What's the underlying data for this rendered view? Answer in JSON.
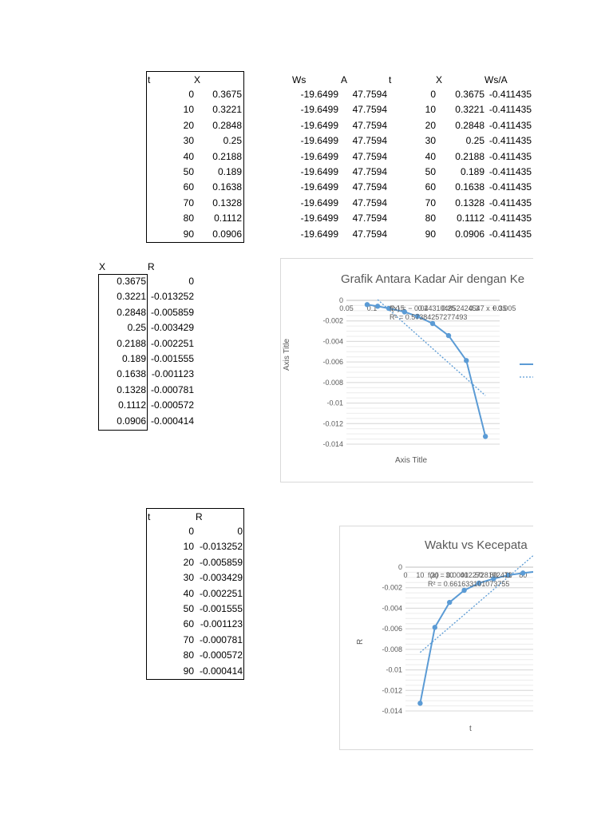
{
  "table1": {
    "headers": [
      "t",
      "X"
    ],
    "rows": [
      [
        "0",
        "0.3675"
      ],
      [
        "10",
        "0.3221"
      ],
      [
        "20",
        "0.2848"
      ],
      [
        "30",
        "0.25"
      ],
      [
        "40",
        "0.2188"
      ],
      [
        "50",
        "0.189"
      ],
      [
        "60",
        "0.1638"
      ],
      [
        "70",
        "0.1328"
      ],
      [
        "80",
        "0.1112"
      ],
      [
        "90",
        "0.0906"
      ]
    ]
  },
  "table2": {
    "headers": [
      "Ws",
      "A",
      "t",
      "X",
      "Ws/A"
    ],
    "rows": [
      [
        "-19.6499",
        "47.7594",
        "0",
        "0.3675",
        "-0.411435"
      ],
      [
        "-19.6499",
        "47.7594",
        "10",
        "0.3221",
        "-0.411435"
      ],
      [
        "-19.6499",
        "47.7594",
        "20",
        "0.2848",
        "-0.411435"
      ],
      [
        "-19.6499",
        "47.7594",
        "30",
        "0.25",
        "-0.411435"
      ],
      [
        "-19.6499",
        "47.7594",
        "40",
        "0.2188",
        "-0.411435"
      ],
      [
        "-19.6499",
        "47.7594",
        "50",
        "0.189",
        "-0.411435"
      ],
      [
        "-19.6499",
        "47.7594",
        "60",
        "0.1638",
        "-0.411435"
      ],
      [
        "-19.6499",
        "47.7594",
        "70",
        "0.1328",
        "-0.411435"
      ],
      [
        "-19.6499",
        "47.7594",
        "80",
        "0.1112",
        "-0.411435"
      ],
      [
        "-19.6499",
        "47.7594",
        "90",
        "0.0906",
        "-0.411435"
      ]
    ]
  },
  "table3": {
    "headers": [
      "X",
      "R"
    ],
    "rows": [
      [
        "0.3675",
        "0"
      ],
      [
        "0.3221",
        "-0.013252"
      ],
      [
        "0.2848",
        "-0.005859"
      ],
      [
        "0.25",
        "-0.003429"
      ],
      [
        "0.2188",
        "-0.002251"
      ],
      [
        "0.189",
        "-0.001555"
      ],
      [
        "0.1638",
        "-0.001123"
      ],
      [
        "0.1328",
        "-0.000781"
      ],
      [
        "0.1112",
        "-0.000572"
      ],
      [
        "0.0906",
        "-0.000414"
      ]
    ]
  },
  "table4": {
    "headers": [
      "t",
      "R"
    ],
    "rows": [
      [
        "0",
        "0"
      ],
      [
        "10",
        "-0.013252"
      ],
      [
        "20",
        "-0.005859"
      ],
      [
        "30",
        "-0.003429"
      ],
      [
        "40",
        "-0.002251"
      ],
      [
        "50",
        "-0.001555"
      ],
      [
        "60",
        "-0.001123"
      ],
      [
        "70",
        "-0.000781"
      ],
      [
        "80",
        "-0.000572"
      ],
      [
        "90",
        "-0.000414"
      ]
    ]
  },
  "chart_data": [
    {
      "type": "line",
      "title": "Grafik Antara Kadar Air dengan Ke",
      "xlabel": "Axis Title",
      "ylabel": "Axis Title",
      "xlim": [
        0.05,
        0.35
      ],
      "ylim": [
        -0.014,
        0
      ],
      "x_ticks": [
        "0.05",
        "0.1",
        "0.15",
        "0.2",
        "0.25",
        "0.3",
        "0.35"
      ],
      "y_ticks": [
        "0",
        "-0.002",
        "-0.004",
        "-0.006",
        "-0.008",
        "-0.01",
        "-0.012",
        "-0.014"
      ],
      "series": [
        {
          "x": [
            0.0906,
            0.1112,
            0.1328,
            0.1638,
            0.189,
            0.2188,
            0.25,
            0.2848,
            0.3221
          ],
          "y": [
            -0.000414,
            -0.000572,
            -0.000781,
            -0.001123,
            -0.001555,
            -0.002251,
            -0.003429,
            -0.005859,
            -0.013252
          ]
        }
      ],
      "trendline": {
        "equation": "f(x) = − 0.0443104852424547 x + 0.005",
        "r2": "R² = 0.573842572774​93",
        "x0": 0.1112,
        "y0": 7e-05,
        "x1": 0.3221,
        "y1": -0.00927
      },
      "series_color": "#5b9bd5"
    },
    {
      "type": "line",
      "title": "Waktu vs Kecepata",
      "xlabel": "t",
      "ylabel": "R",
      "xlim": [
        0,
        100
      ],
      "ylim": [
        -0.014,
        0
      ],
      "x_ticks": [
        "0",
        "10",
        "20",
        "30",
        "40",
        "50",
        "60",
        "70",
        "80"
      ],
      "y_ticks": [
        "0",
        "-0.002",
        "-0.004",
        "-0.006",
        "-0.008",
        "-0.01",
        "-0.012",
        "-0.014"
      ],
      "series": [
        {
          "x": [
            10,
            20,
            30,
            40,
            50,
            60,
            70,
            80,
            90
          ],
          "y": [
            -0.013252,
            -0.005859,
            -0.003429,
            -0.002251,
            -0.001555,
            -0.001123,
            -0.000781,
            -0.000572,
            -0.000414
          ]
        }
      ],
      "trendline": {
        "equation": "f(x) = 0.000122728192411",
        "r2": "R² = 0.661633101073755",
        "x0": 10,
        "y0": -0.0083,
        "x1": 90,
        "y1": 0.0015
      },
      "series_color": "#5b9bd5"
    }
  ]
}
